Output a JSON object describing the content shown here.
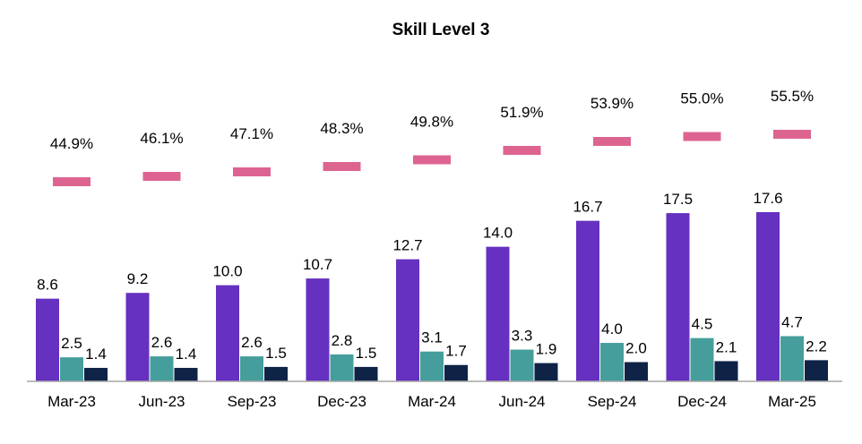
{
  "chart_data": {
    "type": "bar",
    "title": "Skill Level 3",
    "xlabel": "",
    "ylabel": "",
    "categories": [
      "Mar-23",
      "Jun-23",
      "Sep-23",
      "Dec-23",
      "Mar-24",
      "Jun-24",
      "Sep-24",
      "Dec-24",
      "Mar-25"
    ],
    "series": [
      {
        "type": "bar",
        "values": [
          8.6,
          9.2,
          10.0,
          10.7,
          12.7,
          14.0,
          16.7,
          17.5,
          17.6
        ],
        "labels": [
          "8.6",
          "9.2",
          "10.0",
          "10.7",
          "12.7",
          "14.0",
          "16.7",
          "17.5",
          "17.6"
        ],
        "color": "#6630C0"
      },
      {
        "type": "bar",
        "values": [
          2.5,
          2.6,
          2.6,
          2.8,
          3.1,
          3.3,
          4.0,
          4.5,
          4.7
        ],
        "labels": [
          "2.5",
          "2.6",
          "2.6",
          "2.8",
          "3.1",
          "3.3",
          "4.0",
          "4.5",
          "4.7"
        ],
        "color": "#459E9B"
      },
      {
        "type": "bar",
        "values": [
          1.4,
          1.4,
          1.5,
          1.5,
          1.7,
          1.9,
          2.0,
          2.1,
          2.2
        ],
        "labels": [
          "1.4",
          "1.4",
          "1.5",
          "1.5",
          "1.7",
          "1.9",
          "2.0",
          "2.1",
          "2.2"
        ],
        "color": "#0E2346"
      },
      {
        "type": "marker",
        "unit": "%",
        "values": [
          44.9,
          46.1,
          47.1,
          48.3,
          49.8,
          51.9,
          53.9,
          55.0,
          55.5
        ],
        "labels": [
          "44.9%",
          "46.1%",
          "47.1%",
          "48.3%",
          "49.8%",
          "51.9%",
          "53.9%",
          "55.0%",
          "55.5%"
        ],
        "color": "#DD6490"
      }
    ],
    "grid": false,
    "legend": "none"
  }
}
